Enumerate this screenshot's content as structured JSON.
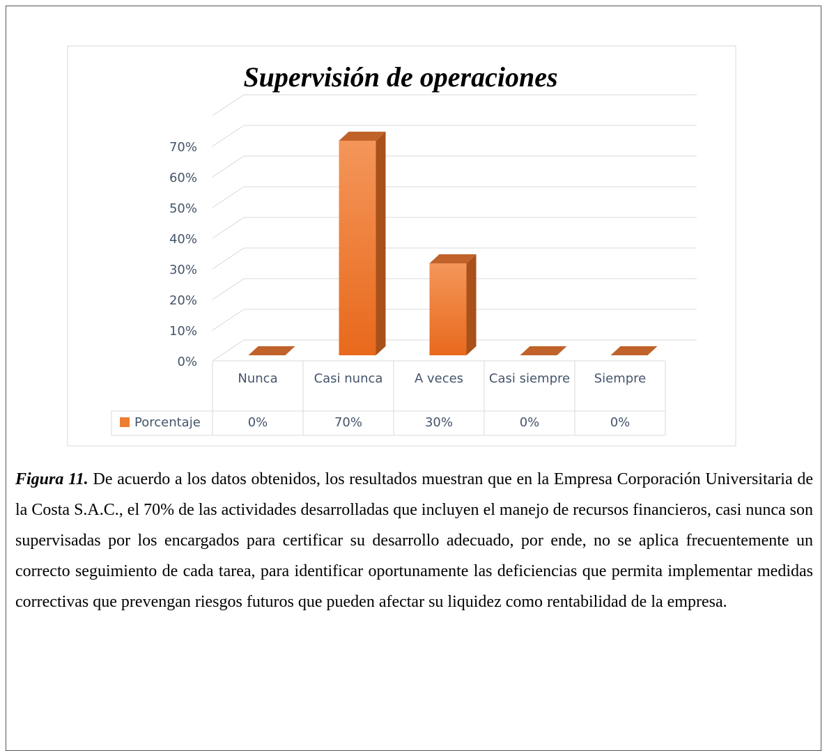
{
  "chart_data": {
    "type": "bar",
    "title": "Supervisión de operaciones",
    "categories": [
      "Nunca",
      "Casi nunca",
      "A veces",
      "Casi siempre",
      "Siempre"
    ],
    "series": [
      {
        "name": "Porcentaje",
        "color": "#ed7d31",
        "values": [
          0,
          70,
          30,
          0,
          0
        ],
        "value_labels": [
          "0%",
          "70%",
          "30%",
          "0%",
          "0%"
        ]
      }
    ],
    "ylim": [
      0,
      80
    ],
    "yticks": [
      {
        "value": 0,
        "label": "0%"
      },
      {
        "value": 10,
        "label": "10%"
      },
      {
        "value": 20,
        "label": "20%"
      },
      {
        "value": 30,
        "label": "30%"
      },
      {
        "value": 40,
        "label": "40%"
      },
      {
        "value": 50,
        "label": "50%"
      },
      {
        "value": 60,
        "label": "60%"
      },
      {
        "value": 70,
        "label": "70%"
      }
    ],
    "grid": true
  },
  "caption": {
    "label": "Figura 11.",
    "text": "De acuerdo a los datos obtenidos, los resultados muestran que en la Empresa Corporación Universitaria de la Costa S.A.C., el 70% de las actividades desarrolladas que incluyen el manejo de recursos financieros, casi nunca son supervisadas por los encargados para certificar su desarrollo adecuado, por ende, no se aplica frecuentemente un correcto seguimiento de cada tarea, para identificar oportunamente las deficiencias que permita implementar medidas correctivas que prevengan riesgos futuros que pueden afectar su liquidez como rentabilidad de la empresa."
  }
}
